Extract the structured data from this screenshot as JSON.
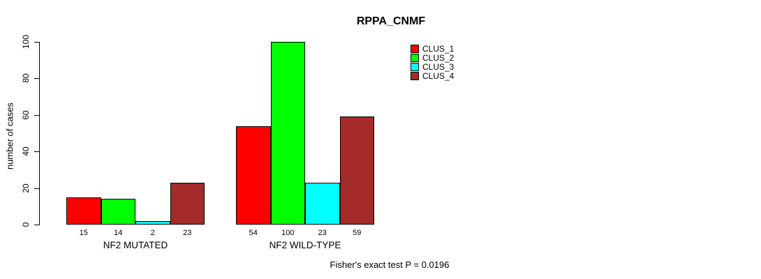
{
  "chart_data": {
    "type": "bar",
    "title": "RPPA_CNMF",
    "xlabel": "",
    "ylabel": "number of cases",
    "ylim": [
      0,
      100
    ],
    "yticks": [
      0,
      20,
      40,
      60,
      80,
      100
    ],
    "grid": false,
    "legend_position": "top-right",
    "bar_outline_color": "#000000",
    "background_color": "#ffffff",
    "categories": [
      "NF2 MUTATED",
      "NF2 WILD-TYPE"
    ],
    "series": [
      {
        "name": "CLUS_1",
        "color": "#ff0000",
        "values": [
          15,
          54
        ]
      },
      {
        "name": "CLUS_2",
        "color": "#00ff00",
        "values": [
          14,
          100
        ]
      },
      {
        "name": "CLUS_3",
        "color": "#00ffff",
        "values": [
          2,
          23
        ]
      },
      {
        "name": "CLUS_4",
        "color": "#a52a2a",
        "values": [
          23,
          59
        ]
      }
    ],
    "bar_value_labels": [
      [
        15,
        14,
        2,
        23
      ],
      [
        54,
        100,
        23,
        59
      ]
    ],
    "annotation": "Fisher's exact test P = 0.0196"
  }
}
